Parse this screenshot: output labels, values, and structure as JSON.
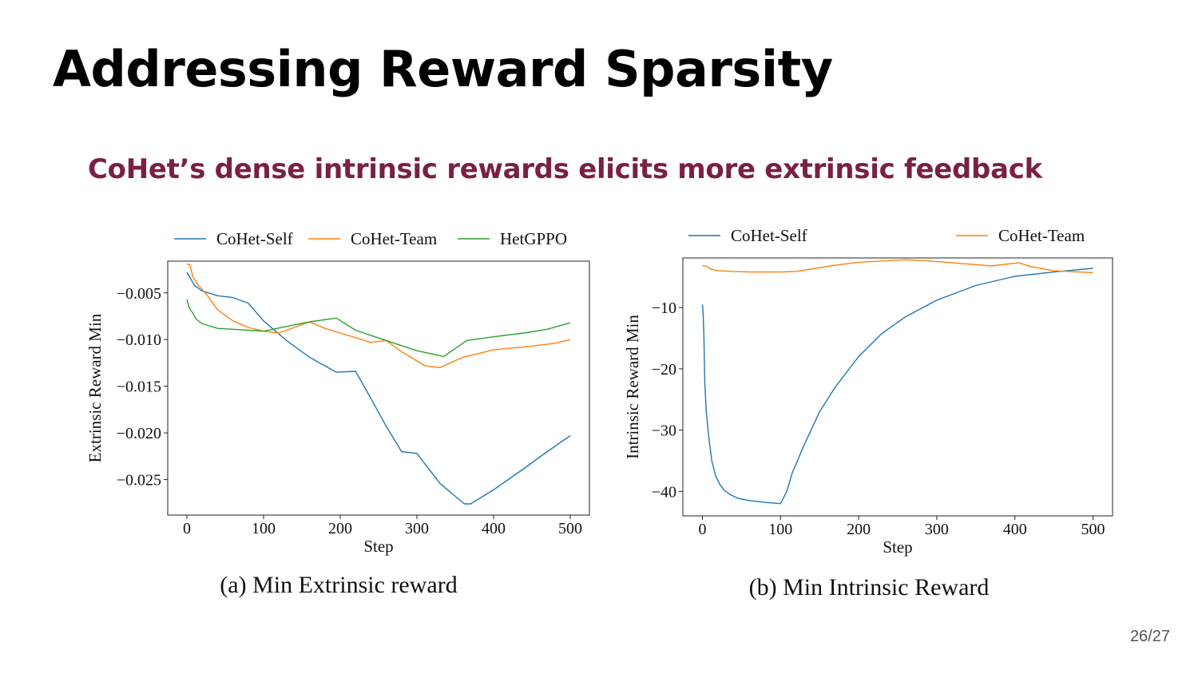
{
  "slide": {
    "title": "Addressing Reward Sparsity",
    "subtitle": "CoHet’s dense intrinsic rewards elicits more extrinsic feedback",
    "page_number": "26/27"
  },
  "colors": {
    "blue": "#1f77b4",
    "orange": "#ff7f0e",
    "green": "#2ca02c",
    "subtitle": "#7a1f45"
  },
  "chart_data": [
    {
      "type": "line",
      "caption": "(a) Min Extrinsic reward",
      "xlabel": "Step",
      "ylabel": "Extrinsic Reward Min",
      "xlim": [
        -25,
        525
      ],
      "ylim": [
        -0.0288,
        -0.0016
      ],
      "xticks": [
        0,
        100,
        200,
        300,
        400,
        500
      ],
      "xtick_labels": [
        "0",
        "100",
        "200",
        "300",
        "400",
        "500"
      ],
      "yticks": [
        -0.005,
        -0.01,
        -0.015,
        -0.02,
        -0.025
      ],
      "ytick_labels": [
        "−0.005",
        "−0.010",
        "−0.015",
        "−0.020",
        "−0.025"
      ],
      "legend_position": "top",
      "series": [
        {
          "name": "CoHet-Self",
          "color": "#1f77b4",
          "x": [
            0,
            5,
            10,
            20,
            40,
            60,
            80,
            100,
            130,
            160,
            195,
            220,
            240,
            260,
            280,
            300,
            330,
            362,
            370,
            400,
            440,
            470,
            500
          ],
          "y": [
            -0.0028,
            -0.0035,
            -0.0042,
            -0.0048,
            -0.0053,
            -0.0055,
            -0.0061,
            -0.008,
            -0.0101,
            -0.0119,
            -0.0135,
            -0.0134,
            -0.0163,
            -0.0193,
            -0.022,
            -0.0222,
            -0.0254,
            -0.0276,
            -0.0276,
            -0.0261,
            -0.0238,
            -0.022,
            -0.0203
          ]
        },
        {
          "name": "CoHet-Team",
          "color": "#ff7f0e",
          "x": [
            0,
            4,
            8,
            15,
            25,
            40,
            60,
            80,
            100,
            120,
            150,
            160,
            180,
            200,
            240,
            260,
            280,
            310,
            330,
            360,
            400,
            450,
            480,
            500
          ],
          "y": [
            -0.0019,
            -0.002,
            -0.0033,
            -0.0042,
            -0.0051,
            -0.0068,
            -0.008,
            -0.0087,
            -0.0091,
            -0.0093,
            -0.0084,
            -0.0081,
            -0.0088,
            -0.0093,
            -0.0103,
            -0.0101,
            -0.0113,
            -0.0128,
            -0.013,
            -0.0119,
            -0.0111,
            -0.0107,
            -0.0104,
            -0.01
          ]
        },
        {
          "name": "HetGPPO",
          "color": "#2ca02c",
          "x": [
            0,
            3,
            8,
            12,
            20,
            40,
            60,
            80,
            100,
            130,
            160,
            195,
            220,
            260,
            300,
            335,
            365,
            400,
            440,
            470,
            500
          ],
          "y": [
            -0.0057,
            -0.0066,
            -0.0072,
            -0.0078,
            -0.0083,
            -0.0088,
            -0.0089,
            -0.009,
            -0.0091,
            -0.0086,
            -0.0081,
            -0.0077,
            -0.009,
            -0.0101,
            -0.0112,
            -0.0118,
            -0.0101,
            -0.0097,
            -0.0093,
            -0.0089,
            -0.0082
          ]
        }
      ]
    },
    {
      "type": "line",
      "caption": "(b) Min Intrinsic Reward",
      "xlabel": "Step",
      "ylabel": "Intrinsic Reward Min",
      "xlim": [
        -25,
        525
      ],
      "ylim": [
        -44,
        -1.9
      ],
      "xticks": [
        0,
        100,
        200,
        300,
        400,
        500
      ],
      "xtick_labels": [
        "0",
        "100",
        "200",
        "300",
        "400",
        "500"
      ],
      "yticks": [
        -10,
        -20,
        -30,
        -40
      ],
      "ytick_labels": [
        "−10",
        "−20",
        "−30",
        "−40"
      ],
      "legend_position": "top",
      "series": [
        {
          "name": "CoHet-Self",
          "color": "#1f77b4",
          "x": [
            0,
            1,
            2,
            3,
            5,
            8,
            12,
            17,
            22,
            28,
            35,
            45,
            60,
            80,
            100,
            108,
            115,
            130,
            150,
            170,
            200,
            230,
            260,
            300,
            350,
            400,
            450,
            500
          ],
          "y": [
            -9.5,
            -11,
            -15,
            -22,
            -27,
            -31,
            -35,
            -37.5,
            -38.8,
            -39.8,
            -40.5,
            -41.1,
            -41.5,
            -41.8,
            -42.0,
            -40.0,
            -37,
            -32.5,
            -27,
            -23,
            -18,
            -14.2,
            -11.5,
            -8.8,
            -6.4,
            -4.9,
            -4.2,
            -3.6
          ]
        },
        {
          "name": "CoHet-Team",
          "color": "#ff7f0e",
          "x": [
            0,
            5,
            10,
            20,
            40,
            60,
            80,
            100,
            120,
            140,
            170,
            200,
            230,
            260,
            290,
            320,
            370,
            405,
            420,
            450,
            500
          ],
          "y": [
            -3.2,
            -3.2,
            -3.7,
            -4.0,
            -4.1,
            -4.2,
            -4.2,
            -4.2,
            -4.1,
            -3.7,
            -3.1,
            -2.6,
            -2.4,
            -2.2,
            -2.4,
            -2.7,
            -3.2,
            -2.7,
            -3.3,
            -4.0,
            -4.3
          ]
        }
      ]
    }
  ]
}
